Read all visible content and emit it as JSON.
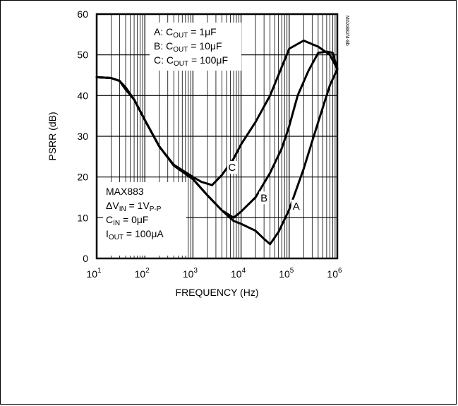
{
  "chart_data": {
    "type": "line",
    "xlabel": "FREQUENCY (Hz)",
    "ylabel": "PSRR (dB)",
    "x_scale": "log",
    "xlim": [
      10,
      1000000
    ],
    "ylim": [
      0,
      60
    ],
    "x_ticks": [
      {
        "value": 10,
        "base": "10",
        "exp": "1"
      },
      {
        "value": 100,
        "base": "10",
        "exp": "2"
      },
      {
        "value": 1000,
        "base": "10",
        "exp": "3"
      },
      {
        "value": 10000,
        "base": "10",
        "exp": "4"
      },
      {
        "value": 100000,
        "base": "10",
        "exp": "5"
      },
      {
        "value": 1000000,
        "base": "10",
        "exp": "6"
      }
    ],
    "y_ticks": [
      0,
      10,
      20,
      30,
      40,
      50,
      60
    ],
    "side_label": "MAX882/4-8b",
    "legend": {
      "lines": [
        {
          "main": "A: C",
          "sub": "OUT",
          "rest": " = 1μF"
        },
        {
          "main": "B: C",
          "sub": "OUT",
          "rest": " = 10μF"
        },
        {
          "main": "C: C",
          "sub": "OUT",
          "rest": " = 100μF"
        }
      ]
    },
    "conditions": [
      {
        "main": "MAX883",
        "sub": "",
        "rest": ""
      },
      {
        "main": "ΔV",
        "sub": "IN",
        "rest": " = 1V",
        "sub2": "P-P"
      },
      {
        "main": "C",
        "sub": "IN",
        "rest": " = 0μF"
      },
      {
        "main": "I",
        "sub": "OUT",
        "rest": " = 100μA"
      }
    ],
    "series": [
      {
        "name": "A",
        "label_at": {
          "x": 140000,
          "y": 12
        },
        "points": [
          [
            10,
            44.5
          ],
          [
            20,
            44.3
          ],
          [
            30,
            43.6
          ],
          [
            40,
            42
          ],
          [
            60,
            39
          ],
          [
            100,
            34
          ],
          [
            200,
            27.5
          ],
          [
            400,
            22.8
          ],
          [
            1000,
            19.5
          ],
          [
            2000,
            15.5
          ],
          [
            4000,
            11.8
          ],
          [
            7000,
            9.2
          ],
          [
            10000,
            8.5
          ],
          [
            20000,
            6.8
          ],
          [
            30000,
            4.8
          ],
          [
            40000,
            3.5
          ],
          [
            60000,
            6.5
          ],
          [
            100000,
            12
          ],
          [
            200000,
            22
          ],
          [
            400000,
            33.5
          ],
          [
            700000,
            42.5
          ],
          [
            1000000,
            46.5
          ]
        ]
      },
      {
        "name": "B",
        "label_at": {
          "x": 30000,
          "y": 14
        },
        "points": [
          [
            10,
            44.5
          ],
          [
            20,
            44.3
          ],
          [
            30,
            43.6
          ],
          [
            40,
            41.5
          ],
          [
            60,
            39
          ],
          [
            100,
            34
          ],
          [
            200,
            27.5
          ],
          [
            400,
            22.8
          ],
          [
            1000,
            19.5
          ],
          [
            2000,
            15.5
          ],
          [
            4000,
            11.8
          ],
          [
            7000,
            10
          ],
          [
            10000,
            11.5
          ],
          [
            20000,
            15
          ],
          [
            40000,
            21
          ],
          [
            70000,
            27
          ],
          [
            100000,
            32.5
          ],
          [
            150000,
            40
          ],
          [
            250000,
            46
          ],
          [
            400000,
            50.5
          ],
          [
            600000,
            50.8
          ],
          [
            800000,
            50.5
          ],
          [
            1000000,
            46.5
          ]
        ]
      },
      {
        "name": "C",
        "label_at": {
          "x": 6500,
          "y": 21.5
        },
        "points": [
          [
            10,
            44.5
          ],
          [
            20,
            44.3
          ],
          [
            30,
            43.6
          ],
          [
            40,
            41.5
          ],
          [
            60,
            39
          ],
          [
            100,
            34
          ],
          [
            200,
            27.5
          ],
          [
            400,
            23
          ],
          [
            1000,
            20
          ],
          [
            1500,
            18.8
          ],
          [
            2500,
            18
          ],
          [
            4000,
            20.5
          ],
          [
            7000,
            24.5
          ],
          [
            10000,
            28
          ],
          [
            20000,
            33.5
          ],
          [
            40000,
            40
          ],
          [
            70000,
            47
          ],
          [
            100000,
            51.5
          ],
          [
            200000,
            53.5
          ],
          [
            400000,
            52
          ],
          [
            700000,
            50
          ],
          [
            1000000,
            46.5
          ]
        ]
      }
    ],
    "grid": true
  }
}
